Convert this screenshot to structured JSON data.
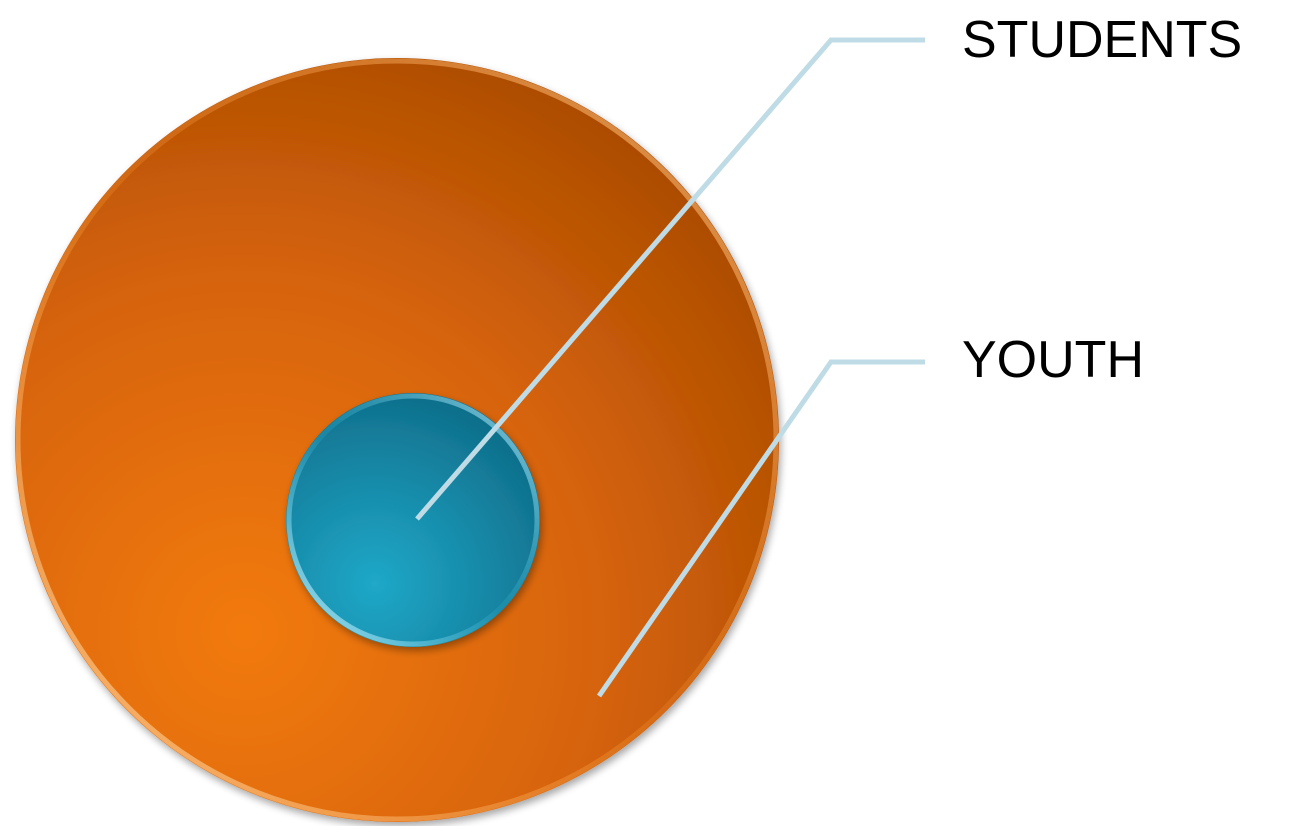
{
  "diagram": {
    "type": "nested-circles",
    "outer": {
      "label": "YOUTH",
      "color": "#E8720C"
    },
    "inner": {
      "label": "STUDENTS",
      "color": "#1A8FB0"
    },
    "leader_line_color": "#BFDCE6"
  }
}
